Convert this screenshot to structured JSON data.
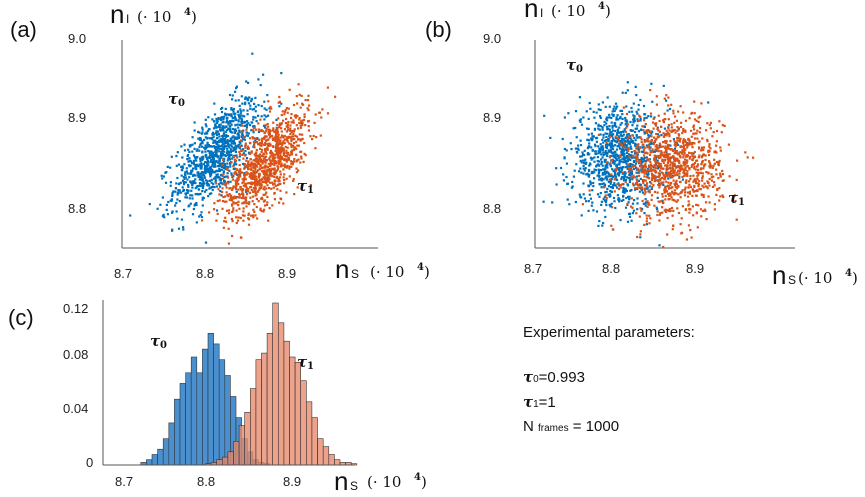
{
  "labels": {
    "panel_a": "(a)",
    "panel_b": "(b)",
    "panel_c": "(c)",
    "var_y": "n",
    "var_y_sub": "I",
    "var_x": "n",
    "var_x_sub": "S",
    "unit_text": "(· 10",
    "unit_exp": "4",
    "unit_close": ")",
    "tau": "τ",
    "tau0_sub": "0",
    "tau1_sub": "1"
  },
  "params": {
    "title": "Experimental parameters:",
    "tau0_value": "=0.993",
    "tau1_value": "=1",
    "n_prefix": "N",
    "n_sub": "frames",
    "n_value": "= 1000"
  },
  "colors": {
    "tau0": "#0072BD",
    "tau1": "#D95319",
    "hist0": "#4A90D0",
    "hist1": "#E8896A"
  },
  "chart_data": [
    {
      "type": "scatter",
      "panel": "(a)",
      "xlabel": "nS (· 10 4)",
      "ylabel": "nI (· 10 4)",
      "xticks": [
        "8.7",
        "8.8",
        "8.9"
      ],
      "yticks": [
        "8.8",
        "8.9",
        "9.0"
      ],
      "xlim": [
        8.69,
        8.99
      ],
      "ylim": [
        8.74,
        9.0
      ],
      "series": [
        {
          "name": "τ0",
          "n_points": 1000,
          "mean": [
            8.81,
            8.865
          ],
          "std": [
            0.026,
            0.032
          ],
          "correlation": 0.65
        },
        {
          "name": "τ1",
          "n_points": 1000,
          "mean": [
            8.87,
            8.855
          ],
          "std": [
            0.026,
            0.032
          ],
          "correlation": 0.65
        }
      ]
    },
    {
      "type": "scatter",
      "panel": "(b)",
      "xlabel": "nS (· 10 4)",
      "ylabel": "nI (· 10 4)",
      "xticks": [
        "8.7",
        "8.8",
        "8.9"
      ],
      "yticks": [
        "8.8",
        "8.9",
        "9.0"
      ],
      "xlim": [
        8.69,
        8.99
      ],
      "ylim": [
        8.74,
        9.0
      ],
      "series": [
        {
          "name": "τ0",
          "n_points": 1000,
          "mean": [
            8.8,
            8.86
          ],
          "std": [
            0.03,
            0.03
          ],
          "correlation": 0.0
        },
        {
          "name": "τ1",
          "n_points": 1000,
          "mean": [
            8.865,
            8.85
          ],
          "std": [
            0.03,
            0.03
          ],
          "correlation": 0.0
        }
      ]
    },
    {
      "type": "bar",
      "panel": "(c)",
      "title": "",
      "xlabel": "nS (· 10 4)",
      "ylabel": "",
      "xticks": [
        "8.7",
        "8.8",
        "8.9"
      ],
      "yticks": [
        "0",
        "0.04",
        "0.08",
        "0.12"
      ],
      "xlim": [
        8.69,
        8.98
      ],
      "ylim": [
        0,
        0.12
      ],
      "bin_edges_start": 8.72,
      "bin_width": 0.00667,
      "series": [
        {
          "name": "τ0",
          "values": [
            0.002,
            0.004,
            0.008,
            0.012,
            0.02,
            0.032,
            0.05,
            0.062,
            0.07,
            0.082,
            0.07,
            0.088,
            0.1,
            0.092,
            0.08,
            0.068,
            0.052,
            0.036,
            0.02,
            0.01,
            0.004,
            0.002,
            0.001,
            0.0
          ]
        },
        {
          "name": "τ1",
          "values": [
            0.0,
            0.0,
            0.0,
            0.0,
            0.0,
            0.0,
            0.001,
            0.002,
            0.004,
            0.006,
            0.01,
            0.018,
            0.03,
            0.04,
            0.058,
            0.08,
            0.085,
            0.1,
            0.123,
            0.108,
            0.094,
            0.082,
            0.078,
            0.064,
            0.048,
            0.036,
            0.02,
            0.014,
            0.008,
            0.004,
            0.002,
            0.002,
            0.001
          ]
        }
      ]
    }
  ]
}
